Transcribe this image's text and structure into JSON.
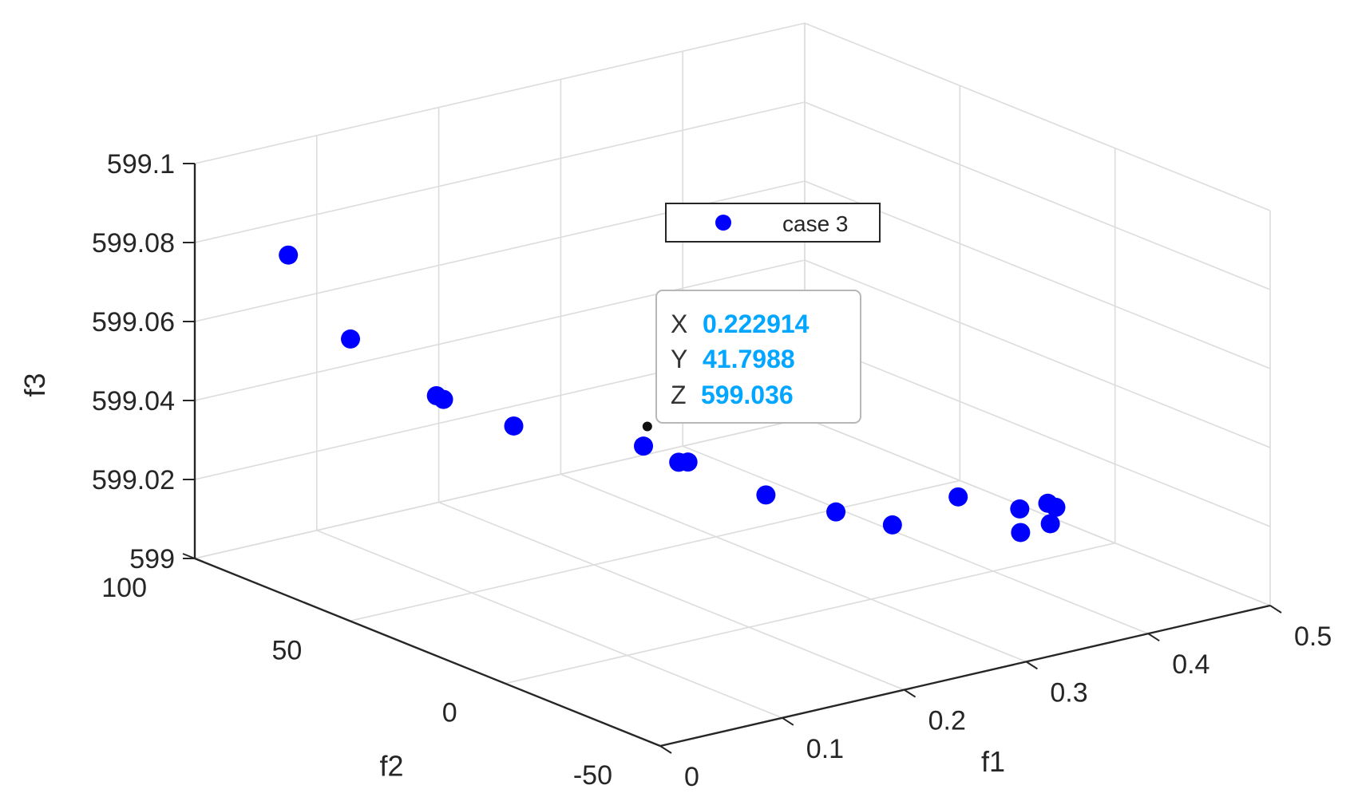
{
  "chart_data": {
    "type": "scatter",
    "dimensions": 3,
    "xlabel": "f1",
    "ylabel": "f2",
    "zlabel": "f3",
    "xlim": [
      0,
      0.5
    ],
    "ylim": [
      -50,
      100
    ],
    "zlim": [
      599,
      599.1
    ],
    "xticks": [
      "0",
      "0.1",
      "0.2",
      "0.3",
      "0.4",
      "0.5"
    ],
    "yticks": [
      "-50",
      "0",
      "50",
      "100"
    ],
    "zticks": [
      "599",
      "599.02",
      "599.04",
      "599.06",
      "599.08",
      "599.1"
    ],
    "grid": true,
    "legend": {
      "position": "upper-center",
      "entries": [
        "case 3"
      ]
    },
    "series": [
      {
        "name": "case 3",
        "color": "#0000ff",
        "marker": "filled-circle",
        "points": [
          {
            "x": 0.007,
            "y": 72.6,
            "z": 599.085
          },
          {
            "x": 0.033,
            "y": 62.8,
            "z": 599.065
          },
          {
            "x": 0.076,
            "y": 52.0,
            "z": 599.051
          },
          {
            "x": 0.08,
            "y": 51.3,
            "z": 599.05
          },
          {
            "x": 0.118,
            "y": 43.6,
            "z": 599.043
          },
          {
            "x": 0.175,
            "y": 24.2,
            "z": 599.04
          },
          {
            "x": 0.239,
            "y": 38.0,
            "z": 599.027
          },
          {
            "x": 0.244,
            "y": 37.0,
            "z": 599.027
          },
          {
            "x": 0.283,
            "y": 27.2,
            "z": 599.019
          },
          {
            "x": 0.318,
            "y": 18.4,
            "z": 599.015
          },
          {
            "x": 0.346,
            "y": 11.2,
            "z": 599.012
          },
          {
            "x": 0.391,
            "y": 7.7,
            "z": 599.017
          },
          {
            "x": 0.403,
            "y": -7.7,
            "z": 599.012
          },
          {
            "x": 0.428,
            "y": 2.4,
            "z": 599.013
          },
          {
            "x": 0.435,
            "y": -4.7,
            "z": 599.011
          },
          {
            "x": 0.45,
            "y": 2.0,
            "z": 599.013
          },
          {
            "x": 0.454,
            "y": 1.0,
            "z": 599.012
          }
        ]
      }
    ],
    "datatip": {
      "x_label": "X",
      "x_value": "0.222914",
      "y_label": "Y",
      "y_value": "41.7988",
      "z_label": "Z",
      "z_value": "599.036",
      "point": {
        "x": 0.222914,
        "y": 41.7988,
        "z": 599.036
      }
    }
  },
  "colors": {
    "marker": "#0000ff",
    "datatip_value": "#00a6ff",
    "grid": "#dcdcdc",
    "axis": "#262626"
  }
}
